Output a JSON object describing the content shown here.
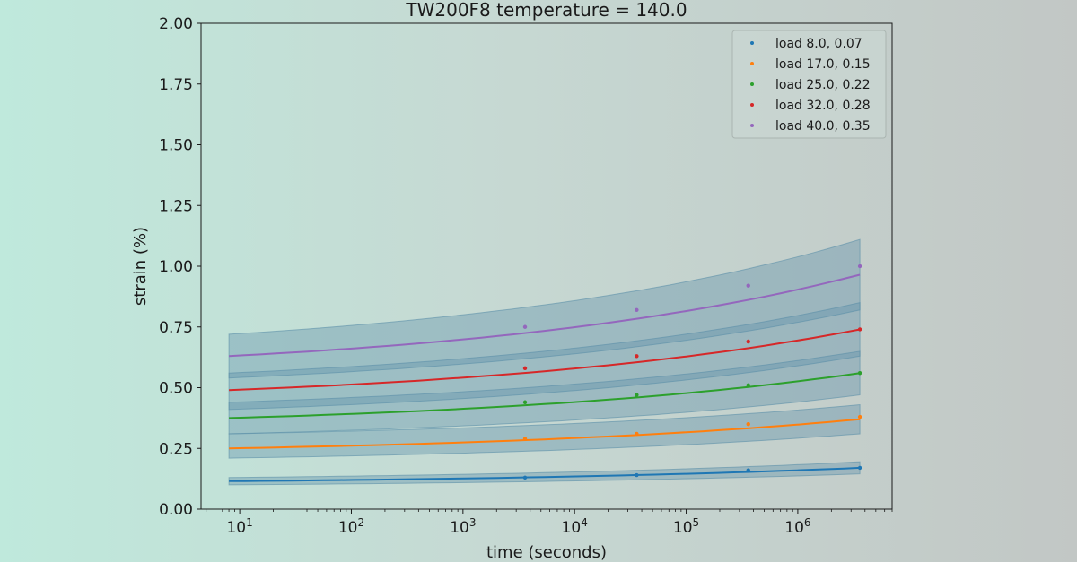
{
  "chart_data": {
    "type": "scatter",
    "title": "TW200F8 temperature = 140.0",
    "xlabel": "time (seconds)",
    "ylabel": "strain (%)",
    "xscale": "log",
    "xlim": [
      4.5,
      7000000
    ],
    "ylim": [
      0,
      2.0
    ],
    "yticks": [
      0,
      0.25,
      0.5,
      0.75,
      1.0,
      1.25,
      1.5,
      1.75,
      2.0
    ],
    "ytick_labels": [
      "0.00",
      "0.25",
      "0.50",
      "0.75",
      "1.00",
      "1.25",
      "1.50",
      "1.75",
      "2.00"
    ],
    "xticks": [
      {
        "value": 10,
        "base": "10",
        "exp": "1"
      },
      {
        "value": 100,
        "base": "10",
        "exp": "2"
      },
      {
        "value": 1000,
        "base": "10",
        "exp": "3"
      },
      {
        "value": 10000,
        "base": "10",
        "exp": "4"
      },
      {
        "value": 100000,
        "base": "10",
        "exp": "5"
      },
      {
        "value": 1000000,
        "base": "10",
        "exp": "6"
      }
    ],
    "grid": false,
    "legend_position": "top-right",
    "band_color": "#5b8fa8",
    "series": [
      {
        "name": "load 8.0, 0.07",
        "color": "#1f77b4",
        "x": [
          3600,
          36000,
          360000,
          3600000
        ],
        "y": [
          0.13,
          0.14,
          0.16,
          0.17
        ],
        "fit_x": [
          8,
          3600000
        ],
        "fit_y": [
          0.115,
          0.17
        ],
        "band_lower": [
          0.1,
          0.145
        ],
        "band_upper": [
          0.13,
          0.195
        ]
      },
      {
        "name": "load 17.0, 0.15",
        "color": "#ff7f0e",
        "x": [
          3600,
          36000,
          360000,
          3600000
        ],
        "y": [
          0.29,
          0.31,
          0.35,
          0.38
        ],
        "fit_x": [
          8,
          3600000
        ],
        "fit_y": [
          0.25,
          0.37
        ],
        "band_lower": [
          0.21,
          0.31
        ],
        "band_upper": [
          0.31,
          0.43
        ]
      },
      {
        "name": "load 25.0, 0.22",
        "color": "#2ca02c",
        "x": [
          3600,
          36000,
          360000,
          3600000
        ],
        "y": [
          0.44,
          0.47,
          0.51,
          0.56
        ],
        "fit_x": [
          8,
          3600000
        ],
        "fit_y": [
          0.375,
          0.56
        ],
        "band_lower": [
          0.31,
          0.47
        ],
        "band_upper": [
          0.44,
          0.65
        ]
      },
      {
        "name": "load 32.0, 0.28",
        "color": "#d62728",
        "x": [
          3600,
          36000,
          360000,
          3600000
        ],
        "y": [
          0.58,
          0.63,
          0.69,
          0.74
        ],
        "fit_x": [
          8,
          3600000
        ],
        "fit_y": [
          0.49,
          0.74
        ],
        "band_lower": [
          0.41,
          0.63
        ],
        "band_upper": [
          0.56,
          0.85
        ]
      },
      {
        "name": "load 40.0, 0.35",
        "color": "#9467bd",
        "x": [
          3600,
          36000,
          360000,
          3600000
        ],
        "y": [
          0.75,
          0.82,
          0.92,
          1.0
        ],
        "fit_x": [
          8,
          3600000
        ],
        "fit_y": [
          0.63,
          0.965
        ],
        "band_lower": [
          0.54,
          0.82
        ],
        "band_upper": [
          0.72,
          1.11
        ]
      }
    ]
  }
}
